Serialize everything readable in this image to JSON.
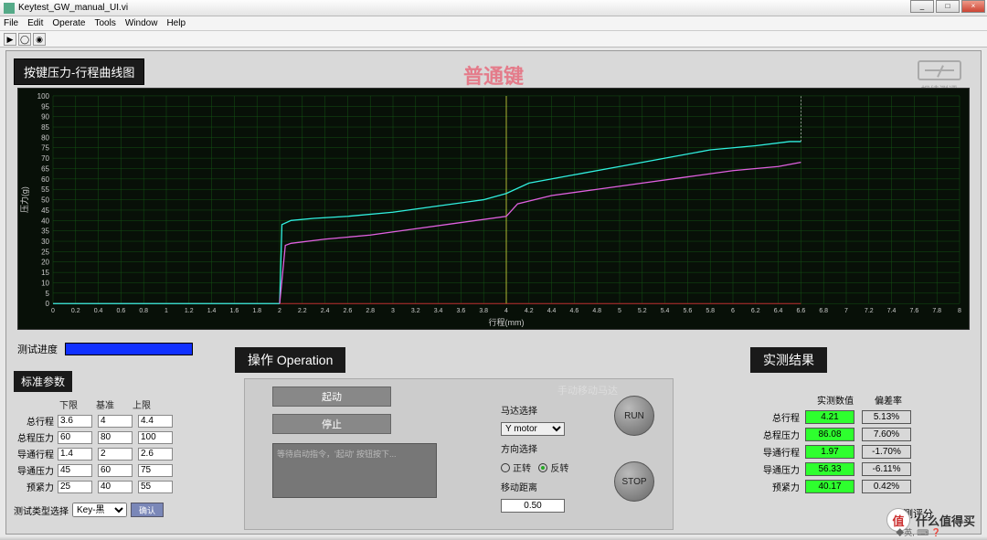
{
  "window": {
    "title": "Keytest_GW_manual_UI.vi",
    "min": "_",
    "max": "□",
    "close": "×"
  },
  "menu": [
    "File",
    "Edit",
    "Operate",
    "Tools",
    "Window",
    "Help"
  ],
  "chart": {
    "panel_title": "按键压力-行程曲线图",
    "center_text": "普通键",
    "center_color": "#e47b8a",
    "brand": "规纬测评",
    "brand_sub": "SUNWAY TECH",
    "xlabel": "行程(mm)",
    "ylabel": "压力(g)",
    "bg": "#081008",
    "grid_color": "#145214",
    "axis_color": "#cccccc",
    "series_top_color": "#30f0e0",
    "series_bot_color": "#e060e0",
    "baseline_color": "#c03030",
    "marker_color": "#d8d840",
    "xlim": [
      0,
      8.0
    ],
    "xtick_step": 0.2,
    "ylim": [
      0,
      100
    ],
    "ytick_step": 5,
    "marker_x": 4.0,
    "series_top": [
      [
        2.0,
        0
      ],
      [
        2.02,
        38
      ],
      [
        2.1,
        40
      ],
      [
        2.3,
        41
      ],
      [
        2.6,
        42
      ],
      [
        3.0,
        44
      ],
      [
        3.4,
        47
      ],
      [
        3.8,
        50
      ],
      [
        4.0,
        53
      ],
      [
        4.2,
        58
      ],
      [
        4.6,
        62
      ],
      [
        5.0,
        66
      ],
      [
        5.4,
        70
      ],
      [
        5.8,
        74
      ],
      [
        6.2,
        76
      ],
      [
        6.5,
        78
      ],
      [
        6.6,
        78
      ]
    ],
    "series_bot": [
      [
        2.0,
        0
      ],
      [
        2.05,
        28
      ],
      [
        2.1,
        29
      ],
      [
        2.4,
        31
      ],
      [
        2.8,
        33
      ],
      [
        3.2,
        36
      ],
      [
        3.6,
        39
      ],
      [
        4.0,
        42
      ],
      [
        4.1,
        48
      ],
      [
        4.4,
        52
      ],
      [
        4.8,
        55
      ],
      [
        5.2,
        58
      ],
      [
        5.6,
        61
      ],
      [
        6.0,
        64
      ],
      [
        6.4,
        66
      ],
      [
        6.6,
        68
      ]
    ]
  },
  "progress": {
    "label": "测试进度",
    "pct": 100,
    "fill": "#1030ff"
  },
  "std": {
    "title": "标准参数",
    "headers": [
      "下限",
      "基准",
      "上限"
    ],
    "rows": [
      {
        "label": "总行程",
        "v": [
          "3.6",
          "4",
          "4.4"
        ]
      },
      {
        "label": "总程压力",
        "v": [
          "60",
          "80",
          "100"
        ]
      },
      {
        "label": "导通行程",
        "v": [
          "1.4",
          "2",
          "2.6"
        ]
      },
      {
        "label": "导通压力",
        "v": [
          "45",
          "60",
          "75"
        ]
      },
      {
        "label": "预紧力",
        "v": [
          "25",
          "40",
          "55"
        ]
      }
    ],
    "type_label": "测试类型选择",
    "type_value": "Key-黑",
    "type_btn": "确认"
  },
  "op": {
    "title": "操作 Operation",
    "start": "起动",
    "stop": "停止",
    "hint": "等待启动指令，'起动' 按钮按下...",
    "motor_title": "手动移动马达",
    "motor_select_label": "马达选择",
    "motor_select_value": "Y motor",
    "dir_label": "方向选择",
    "dir_fwd": "正转",
    "dir_rev": "反转",
    "dist_label": "移动距离",
    "dist_value": "0.50",
    "run": "RUN",
    "stopbtn": "STOP"
  },
  "result": {
    "title": "实测结果",
    "headers": [
      "实测数值",
      "偏差率"
    ],
    "rows": [
      {
        "label": "总行程",
        "val": "4.21",
        "dev": "5.13%"
      },
      {
        "label": "总程压力",
        "val": "86.08",
        "dev": "7.60%"
      },
      {
        "label": "导通行程",
        "val": "1.97",
        "dev": "-1.70%"
      },
      {
        "label": "导通压力",
        "val": "56.33",
        "dev": "-6.11%"
      },
      {
        "label": "预紧力",
        "val": "40.17",
        "dev": "0.42%"
      }
    ],
    "score_label": "测评分"
  },
  "watermark": "什么值得买",
  "watermark_badge": "值",
  "tray": "◆英, ⌨ ❓"
}
